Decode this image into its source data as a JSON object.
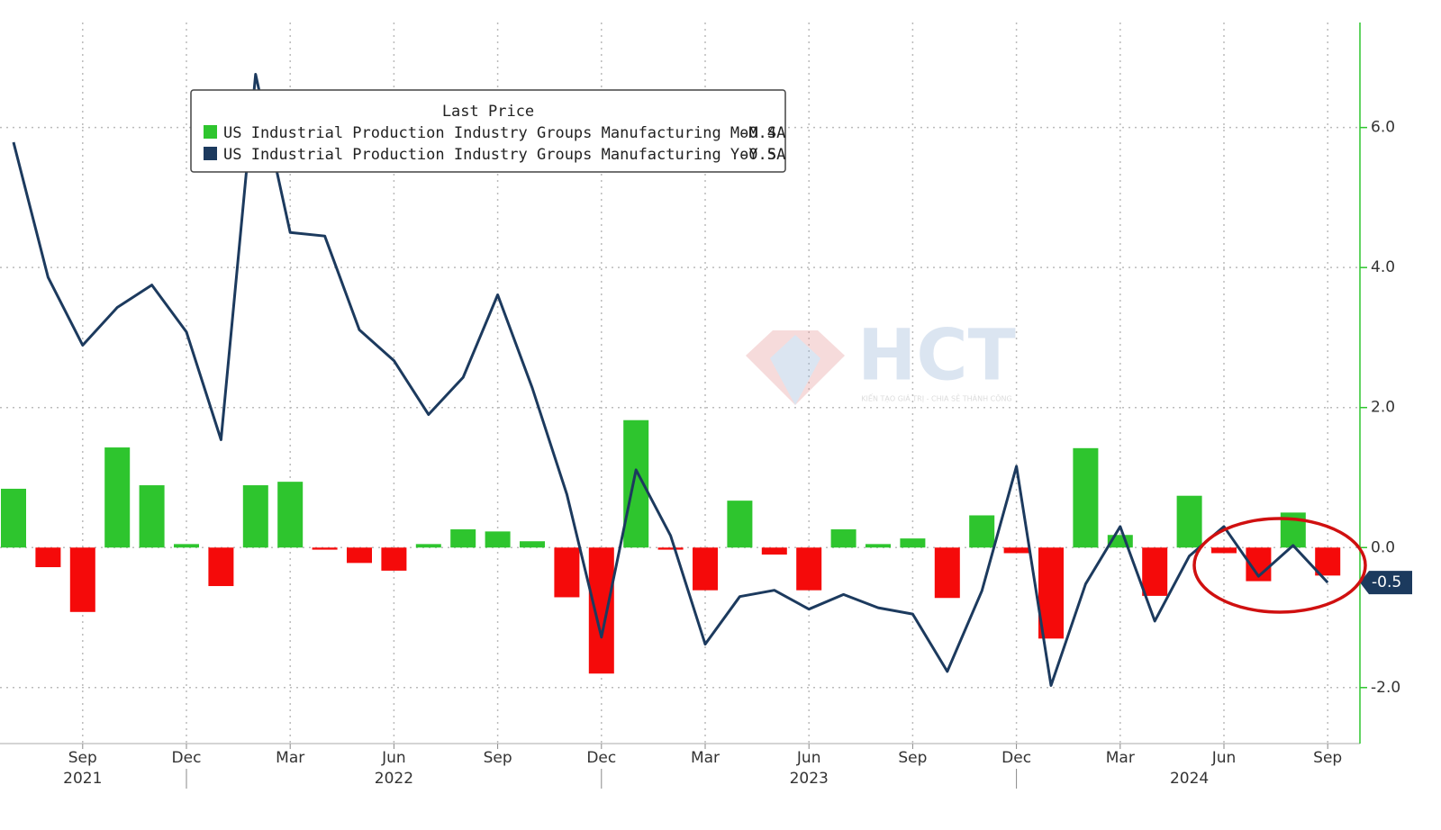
{
  "chart_data": {
    "type": "bar-line",
    "x": [
      "2021-07",
      "2021-08",
      "2021-09",
      "2021-10",
      "2021-11",
      "2021-12",
      "2022-01",
      "2022-02",
      "2022-03",
      "2022-04",
      "2022-05",
      "2022-06",
      "2022-07",
      "2022-08",
      "2022-09",
      "2022-10",
      "2022-11",
      "2022-12",
      "2023-01",
      "2023-02",
      "2023-03",
      "2023-04",
      "2023-05",
      "2023-06",
      "2023-07",
      "2023-08",
      "2023-09",
      "2023-10",
      "2023-11",
      "2023-12",
      "2024-01",
      "2024-02",
      "2024-03",
      "2024-04",
      "2024-05",
      "2024-06",
      "2024-07",
      "2024-08",
      "2024-09"
    ],
    "xticks": [
      {
        "value": "2021-09",
        "label": "Sep"
      },
      {
        "value": "2021-12",
        "label": "Dec"
      },
      {
        "value": "2022-03",
        "label": "Mar"
      },
      {
        "value": "2022-06",
        "label": "Jun"
      },
      {
        "value": "2022-09",
        "label": "Sep"
      },
      {
        "value": "2022-12",
        "label": "Dec"
      },
      {
        "value": "2023-03",
        "label": "Mar"
      },
      {
        "value": "2023-06",
        "label": "Jun"
      },
      {
        "value": "2023-09",
        "label": "Sep"
      },
      {
        "value": "2023-12",
        "label": "Dec"
      },
      {
        "value": "2024-03",
        "label": "Mar"
      },
      {
        "value": "2024-06",
        "label": "Jun"
      },
      {
        "value": "2024-09",
        "label": "Sep"
      }
    ],
    "year_labels": [
      {
        "value": "2021-09",
        "label": "2021"
      },
      {
        "value": "2022-06",
        "label": "2022"
      },
      {
        "value": "2023-06",
        "label": "2023"
      },
      {
        "value": "2024-05",
        "label": "2024"
      }
    ],
    "ylim": [
      -2.8,
      7.5
    ],
    "yticks": [
      {
        "value": -2,
        "label": "-2.0"
      },
      {
        "value": 0,
        "label": "0.0"
      },
      {
        "value": 2,
        "label": "2.0"
      },
      {
        "value": 4,
        "label": "4.0"
      },
      {
        "value": 6,
        "label": "6.0"
      }
    ],
    "grid": true,
    "legend_title": "Last Price",
    "series": [
      {
        "name": "US Industrial Production Industry Groups Manufacturing MoM SA",
        "last_price": "-0.4",
        "kind": "bar",
        "color": "#2ec52e",
        "negative_color": "#f50a0a",
        "values": [
          0.84,
          -0.28,
          -0.92,
          1.43,
          0.89,
          0.05,
          -0.55,
          0.89,
          0.94,
          -0.03,
          -0.22,
          -0.33,
          0.05,
          0.26,
          0.23,
          0.09,
          -0.71,
          -1.8,
          1.82,
          -0.03,
          -0.61,
          0.67,
          -0.1,
          -0.61,
          0.26,
          0.05,
          0.13,
          -0.72,
          0.46,
          -0.08,
          -1.3,
          1.42,
          0.18,
          -0.69,
          0.74,
          -0.08,
          -0.48,
          0.5,
          -0.4
        ]
      },
      {
        "name": "US Industrial Production Industry Groups Manufacturing YoY SA",
        "last_price": "-0.5",
        "kind": "line",
        "color": "#1c3a5e",
        "last_value_label": "-0.5",
        "values": [
          5.79,
          3.86,
          2.89,
          3.43,
          3.75,
          3.08,
          1.54,
          6.76,
          4.5,
          4.45,
          3.11,
          2.67,
          1.9,
          2.43,
          3.61,
          2.28,
          0.76,
          -1.28,
          1.11,
          0.17,
          -1.38,
          -0.7,
          -0.61,
          -0.88,
          -0.67,
          -0.86,
          -0.95,
          -1.77,
          -0.62,
          1.16,
          -1.97,
          -0.52,
          0.3,
          -1.05,
          -0.12,
          0.3,
          -0.41,
          0.03,
          -0.5
        ]
      }
    ]
  },
  "watermark": {
    "logo": "HCT",
    "tagline": "KIẾN TẠO GIÁ TRỊ - CHIA SẺ THÀNH CÔNG"
  }
}
